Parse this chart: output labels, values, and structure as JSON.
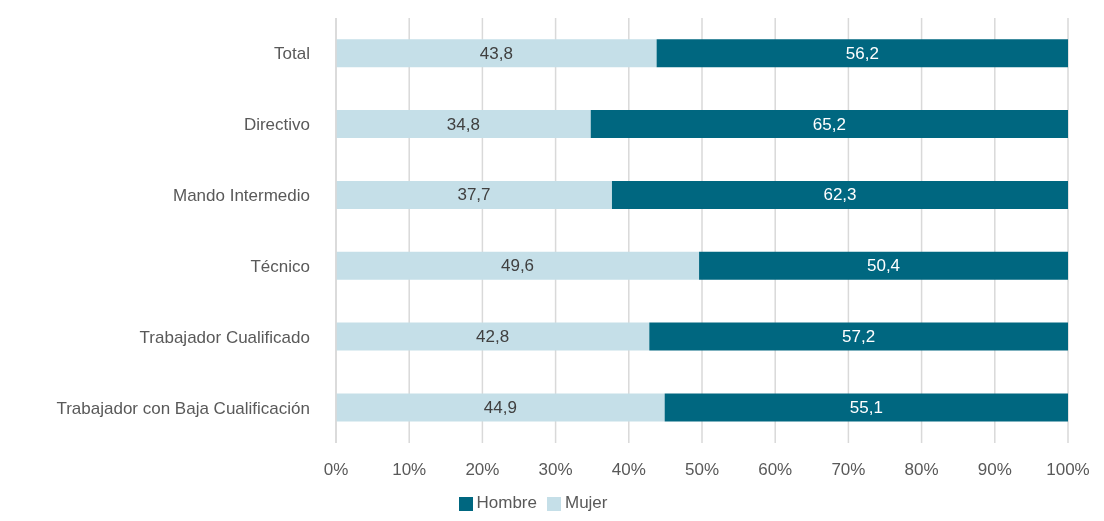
{
  "chart_data": {
    "type": "bar",
    "orientation": "horizontal",
    "stacked": true,
    "categories": [
      "Total",
      "Directivo",
      "Mando Intermedio",
      "Técnico",
      "Trabajador Cualificado",
      "Trabajador con Baja Cualificación"
    ],
    "series": [
      {
        "name": "Mujer",
        "color": "#c5dfe8",
        "values": [
          43.8,
          34.8,
          37.7,
          49.6,
          42.8,
          44.9
        ],
        "value_labels": [
          "43,8",
          "34,8",
          "37,7",
          "49,6",
          "42,8",
          "44,9"
        ]
      },
      {
        "name": "Hombre",
        "color": "#006780",
        "values": [
          56.2,
          65.2,
          62.3,
          50.4,
          57.2,
          55.1
        ],
        "value_labels": [
          "56,2",
          "65,2",
          "62,3",
          "50,4",
          "57,2",
          "55,1"
        ]
      }
    ],
    "xlim": [
      0,
      100
    ],
    "xticks": [
      {
        "value": 0,
        "label": "0%"
      },
      {
        "value": 10,
        "label": "10%"
      },
      {
        "value": 20,
        "label": "20%"
      },
      {
        "value": 30,
        "label": "30%"
      },
      {
        "value": 40,
        "label": "40%"
      },
      {
        "value": 50,
        "label": "50%"
      },
      {
        "value": 60,
        "label": "60%"
      },
      {
        "value": 70,
        "label": "70%"
      },
      {
        "value": 80,
        "label": "80%"
      },
      {
        "value": 90,
        "label": "90%"
      },
      {
        "value": 100,
        "label": "100%"
      }
    ],
    "grid": "x",
    "legend": "bottom"
  }
}
